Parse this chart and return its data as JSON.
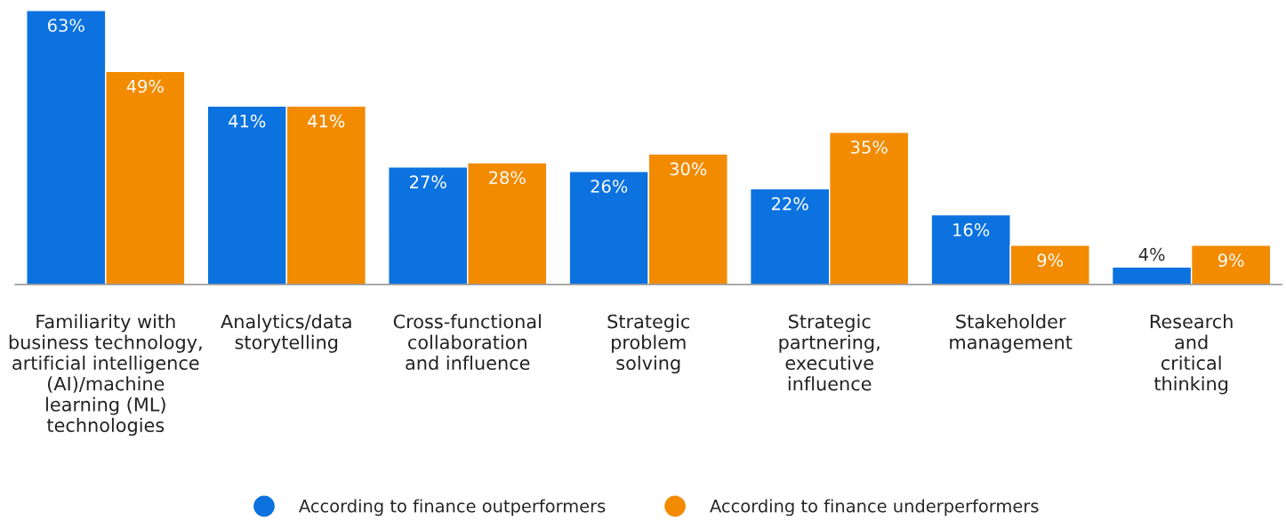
{
  "chart_data": {
    "type": "bar",
    "categories": [
      "Familiarity with\nbusiness technology,\nartificial intelligence\n(AI)/machine\nlearning (ML)\ntechnologies",
      "Analytics/data\nstorytelling",
      "Cross-functional\ncollaboration\nand influence",
      "Strategic\nproblem\nsolving",
      "Strategic\npartnering,\nexecutive\ninfluence",
      "Stakeholder\nmanagement",
      "Research\nand\ncritical\nthinking"
    ],
    "series": [
      {
        "name": "According to finance outperformers",
        "color": "#0b72e0",
        "values": [
          63,
          41,
          27,
          26,
          22,
          16,
          4
        ],
        "value_labels": [
          "63%",
          "41%",
          "27%",
          "26%",
          "22%",
          "16%",
          "4%"
        ]
      },
      {
        "name": "According to finance underperformers",
        "color": "#f28b00",
        "values": [
          49,
          41,
          28,
          30,
          35,
          9,
          9
        ],
        "value_labels": [
          "49%",
          "41%",
          "28%",
          "30%",
          "35%",
          "9%",
          "9%"
        ]
      }
    ],
    "tick_labels": "x",
    "grid": false,
    "legend": "bottom",
    "marker": "circle"
  }
}
